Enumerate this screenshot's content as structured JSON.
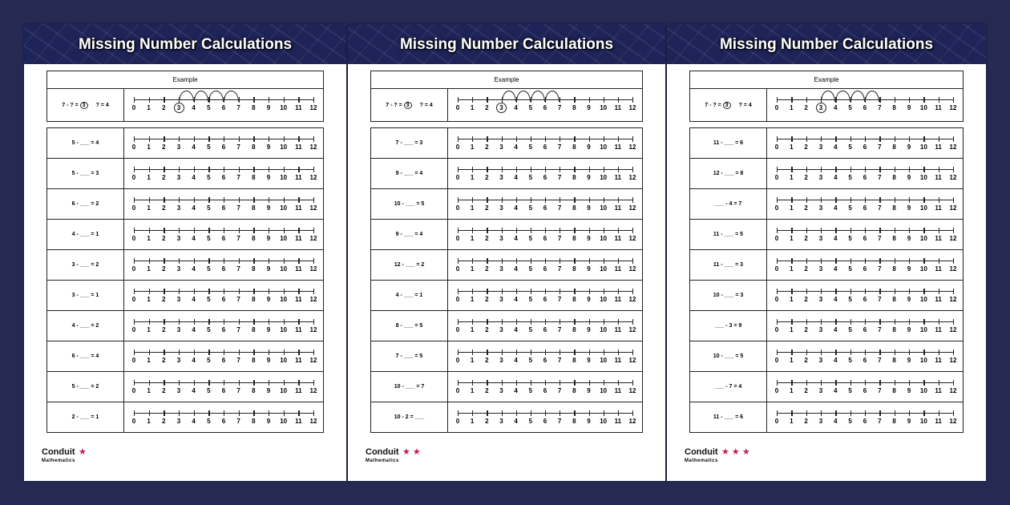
{
  "colors": {
    "background": "#262a52",
    "banner": "#1e2358",
    "star": "#c2185b"
  },
  "number_line_labels": [
    "0",
    "1",
    "2",
    "3",
    "4",
    "5",
    "6",
    "7",
    "8",
    "9",
    "10",
    "11",
    "12"
  ],
  "worksheets": [
    {
      "title": "Missing Number Calculations",
      "example_label": "Example",
      "example_eq": "7 - ? =",
      "example_circled": "3",
      "example_answer": "? = 4",
      "brand": "Conduit",
      "brand_sub": "Mathematics",
      "stars": "★",
      "questions": [
        "5 - ___ = 4",
        "5 - ___ = 3",
        "6 - ___ = 2",
        "4 - ___ = 1",
        "3 - ___ = 2",
        "3 - ___ = 1",
        "4 - ___ = 2",
        "6 - ___ = 4",
        "5 - ___ = 2",
        "2 - ___ = 1"
      ]
    },
    {
      "title": "Missing Number Calculations",
      "example_label": "Example",
      "example_eq": "7 - ? =",
      "example_circled": "3",
      "example_answer": "? = 4",
      "brand": "Conduit",
      "brand_sub": "Mathematics",
      "stars": "★ ★",
      "questions": [
        "7 - ___ = 3",
        "9 - ___ = 4",
        "10 - ___ = 5",
        "9 - ___ = 4",
        "12 - ___ = 2",
        "4 - ___ = 1",
        "8 - ___ = 5",
        "7 - ___ = 5",
        "10 - ___ = 7",
        "10 - 2 = ___"
      ]
    },
    {
      "title": "Missing Number Calculations",
      "example_label": "Example",
      "example_eq": "7 - ? =",
      "example_circled": "3",
      "example_answer": "? = 4",
      "brand": "Conduit",
      "brand_sub": "Mathematics",
      "stars": "★ ★ ★",
      "questions": [
        "11 - ___ = 6",
        "12 - ___ = 8",
        "___ - 4 = 7",
        "11 - ___ = 5",
        "11 - ___ = 3",
        "10 - ___ = 3",
        "___ - 3 = 9",
        "10 - ___ = 5",
        "___ - 7 = 4",
        "11 - ___ = 6"
      ]
    }
  ]
}
